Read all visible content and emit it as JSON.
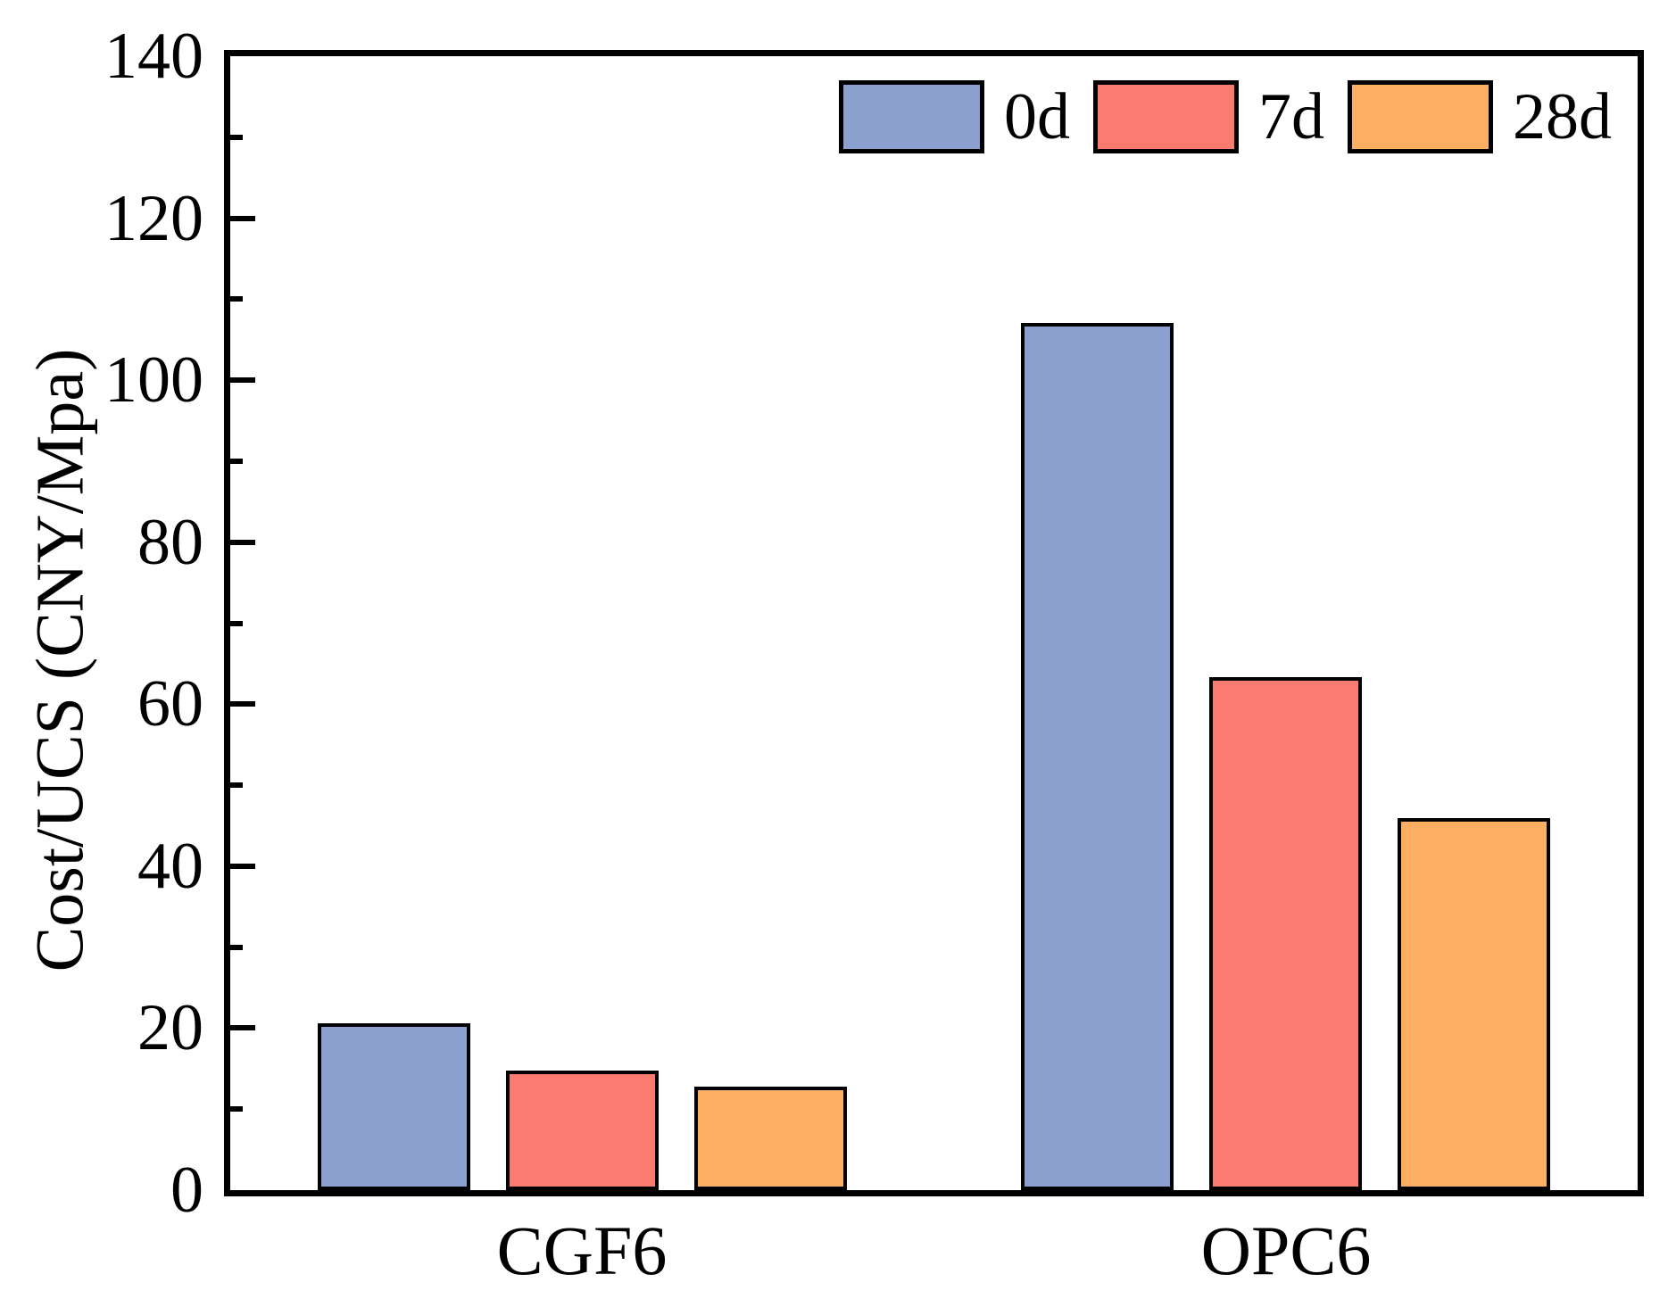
{
  "chart_data": {
    "type": "bar",
    "title": "",
    "categories": [
      "CGF6",
      "OPC6"
    ],
    "series": [
      {
        "name": "0d",
        "color": "#8BA0CE",
        "values": [
          20.6,
          107.1
        ]
      },
      {
        "name": "7d",
        "color": "#FB7B70",
        "values": [
          14.8,
          63.3
        ]
      },
      {
        "name": "28d",
        "color": "#FCAE63",
        "values": [
          12.8,
          45.9
        ]
      }
    ],
    "xlabel": "",
    "ylabel": "Cost/UCS (CNY/Mpa)",
    "ylim": [
      0,
      140
    ],
    "ytick_major": [
      0,
      20,
      40,
      60,
      80,
      100,
      120,
      140
    ],
    "ytick_minor_step": 10,
    "grid": false,
    "legend_position": "top-right-inside",
    "bar_edge_color": "#000000",
    "axis_color": "#000000",
    "background_color": "#FFFFFF"
  }
}
